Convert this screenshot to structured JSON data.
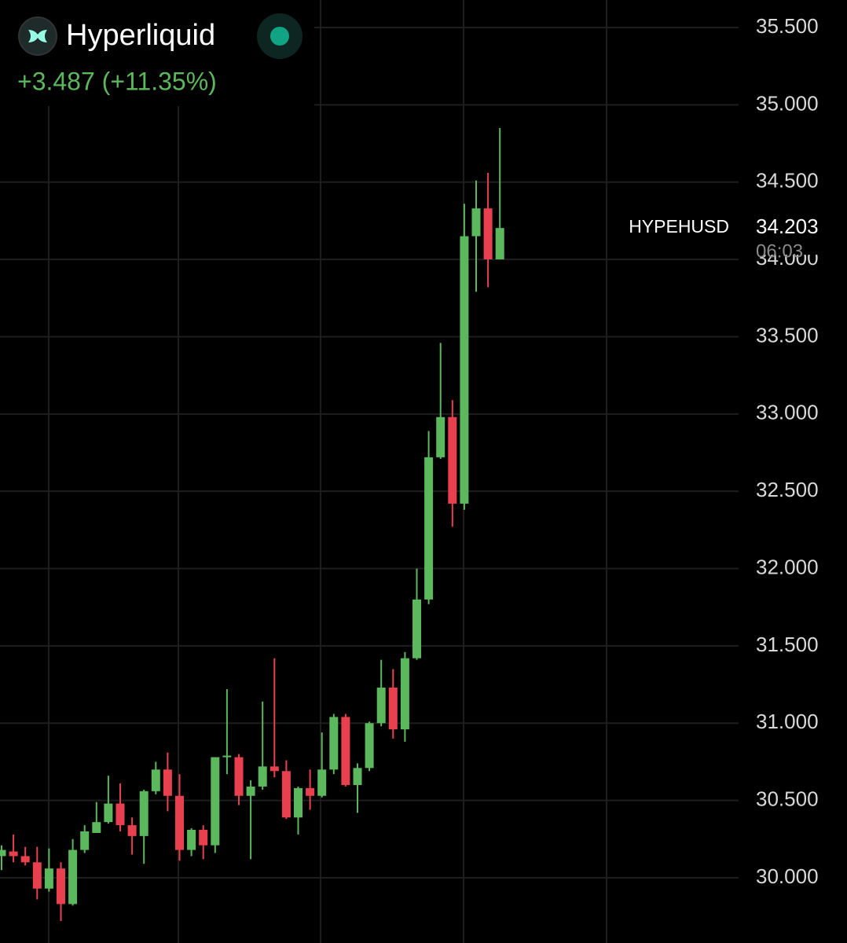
{
  "header": {
    "name": "Hyperliquid",
    "change": "+3.487 (+11.35%)"
  },
  "chart_data": {
    "type": "candlestick",
    "symbol": "HYPEHUSD",
    "last_price": {
      "value": 34.203,
      "label": "34.203"
    },
    "countdown": "06:03",
    "up_color": "#5cb85c",
    "down_color": "#e8404f",
    "ylim": [
      29.578,
      35.678
    ],
    "yticks": [
      {
        "value": 30,
        "label": "30.000"
      },
      {
        "value": 30.5,
        "label": "30.500"
      },
      {
        "value": 31,
        "label": "31.000"
      },
      {
        "value": 31.5,
        "label": "31.500"
      },
      {
        "value": 32,
        "label": "32.000"
      },
      {
        "value": 32.5,
        "label": "32.500"
      },
      {
        "value": 33,
        "label": "33.000"
      },
      {
        "value": 33.5,
        "label": "33.500"
      },
      {
        "value": 34,
        "label": "34.000"
      },
      {
        "value": 34.5,
        "label": "34.500"
      },
      {
        "value": 35,
        "label": "35.000"
      },
      {
        "value": 35.5,
        "label": "35.500"
      }
    ],
    "grid": true,
    "open": [
      30.14,
      30.17,
      30.14,
      30.1,
      29.93,
      30.06,
      29.83,
      30.18,
      30.29,
      30.36,
      30.48,
      30.34,
      30.27,
      30.56,
      30.7,
      30.53,
      30.18,
      30.31,
      30.21,
      30.78,
      30.78,
      30.53,
      30.59,
      30.72,
      30.69,
      30.39,
      30.58,
      30.53,
      30.7,
      31.04,
      30.6,
      30.71,
      31.0,
      31.23,
      30.96,
      31.42,
      31.8,
      32.72,
      32.98,
      32.42,
      34.15,
      34.33,
      34.0
    ],
    "high": [
      30.21,
      30.28,
      30.2,
      30.2,
      30.19,
      30.1,
      30.25,
      30.34,
      30.49,
      30.66,
      30.61,
      30.39,
      30.57,
      30.75,
      30.81,
      30.67,
      30.32,
      30.34,
      30.78,
      31.22,
      30.8,
      30.63,
      31.14,
      31.42,
      30.76,
      30.59,
      30.7,
      30.94,
      31.06,
      31.06,
      30.74,
      31.01,
      31.41,
      31.35,
      31.46,
      32.0,
      32.89,
      33.46,
      33.09,
      34.36,
      34.51,
      34.56,
      34.85
    ],
    "low": [
      30.05,
      30.1,
      30.08,
      29.86,
      29.91,
      29.72,
      29.82,
      30.16,
      30.29,
      30.35,
      30.3,
      30.15,
      30.09,
      30.54,
      30.43,
      30.11,
      30.14,
      30.12,
      30.16,
      30.67,
      30.47,
      30.12,
      30.57,
      30.65,
      30.38,
      30.28,
      30.44,
      30.52,
      30.67,
      30.59,
      30.42,
      30.69,
      30.98,
      30.9,
      30.88,
      31.41,
      31.77,
      32.71,
      32.27,
      32.38,
      33.79,
      33.82,
      34.0
    ],
    "close": [
      30.18,
      30.14,
      30.1,
      29.93,
      30.06,
      29.83,
      30.18,
      30.3,
      30.36,
      30.48,
      30.34,
      30.27,
      30.56,
      30.7,
      30.53,
      30.18,
      30.31,
      30.21,
      30.78,
      30.79,
      30.53,
      30.59,
      30.72,
      30.69,
      30.39,
      30.58,
      30.53,
      30.7,
      31.04,
      30.6,
      30.71,
      31.0,
      31.23,
      30.96,
      31.42,
      31.8,
      32.72,
      32.98,
      32.42,
      34.15,
      34.33,
      34.0,
      34.203
    ]
  }
}
